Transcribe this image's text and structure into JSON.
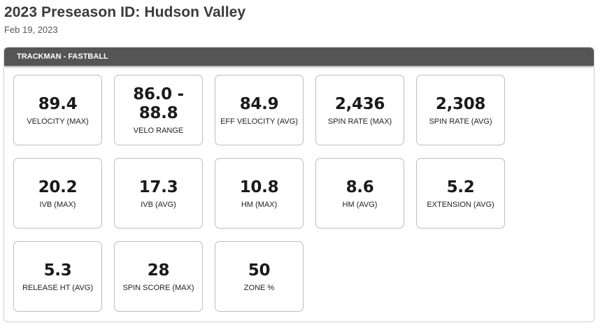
{
  "header": {
    "title": "2023 Preseason ID: Hudson Valley",
    "date": "Feb 19, 2023"
  },
  "panel": {
    "title": "TRACKMAN - FASTBALL",
    "stats": [
      {
        "value": "89.4",
        "label": "VELOCITY (MAX)"
      },
      {
        "value": "86.0 - 88.8",
        "label": "VELO RANGE"
      },
      {
        "value": "84.9",
        "label": "EFF VELOCITY (AVG)"
      },
      {
        "value": "2,436",
        "label": "SPIN RATE (MAX)"
      },
      {
        "value": "2,308",
        "label": "SPIN RATE (AVG)"
      },
      {
        "value": "20.2",
        "label": "IVB (MAX)"
      },
      {
        "value": "17.3",
        "label": "IVB (AVG)"
      },
      {
        "value": "10.8",
        "label": "HM (MAX)"
      },
      {
        "value": "8.6",
        "label": "HM (AVG)"
      },
      {
        "value": "5.2",
        "label": "EXTENSION (AVG)"
      },
      {
        "value": "5.3",
        "label": "RELEASE HT (AVG)"
      },
      {
        "value": "28",
        "label": "SPIN SCORE (MAX)"
      },
      {
        "value": "50",
        "label": "ZONE %"
      }
    ]
  },
  "colors": {
    "header_bar": "#555555",
    "card_border": "#bdbdbd",
    "title_text": "#3a3a3a"
  }
}
